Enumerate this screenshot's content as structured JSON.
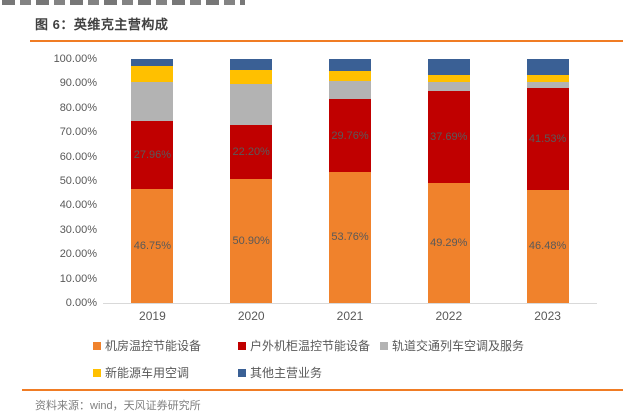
{
  "page": {
    "figure_title": "图 6：英维克主营构成",
    "source_text": "资料来源：wind，天风证券研究所",
    "accent_rule_color": "#f07c24"
  },
  "chart_data": {
    "type": "bar",
    "stacked": true,
    "title": "图 6：英维克主营构成",
    "categories": [
      "2019",
      "2020",
      "2021",
      "2022",
      "2023"
    ],
    "series": [
      {
        "name": "机房温控节能设备",
        "color": "#f0822c",
        "values": [
          46.75,
          50.9,
          53.76,
          49.29,
          46.48
        ],
        "labels": [
          "46.75%",
          "50.90%",
          "53.76%",
          "49.29%",
          "46.48%"
        ]
      },
      {
        "name": "户外机柜温控节能设备",
        "color": "#c00000",
        "values": [
          27.96,
          22.2,
          29.76,
          37.69,
          41.53
        ],
        "labels": [
          "27.96%",
          "22.20%",
          "29.76%",
          "37.69%",
          "41.53%"
        ]
      },
      {
        "name": "轨道交通列车空调及服务",
        "color": "#b3b3b3",
        "values": [
          16.0,
          16.7,
          7.3,
          3.6,
          2.6
        ]
      },
      {
        "name": "新能源车用空调",
        "color": "#ffc000",
        "values": [
          6.3,
          5.7,
          4.1,
          3.0,
          2.7
        ]
      },
      {
        "name": "其他主营业务",
        "color": "#3a6095",
        "values": [
          3.0,
          4.5,
          5.1,
          6.4,
          6.7
        ]
      }
    ],
    "y_ticks": [
      "100.00%",
      "90.00%",
      "80.00%",
      "70.00%",
      "60.00%",
      "50.00%",
      "40.00%",
      "30.00%",
      "20.00%",
      "10.00%",
      "0.00%"
    ],
    "ylim": [
      0,
      100
    ],
    "grid": false,
    "legend_position": "bottom"
  }
}
